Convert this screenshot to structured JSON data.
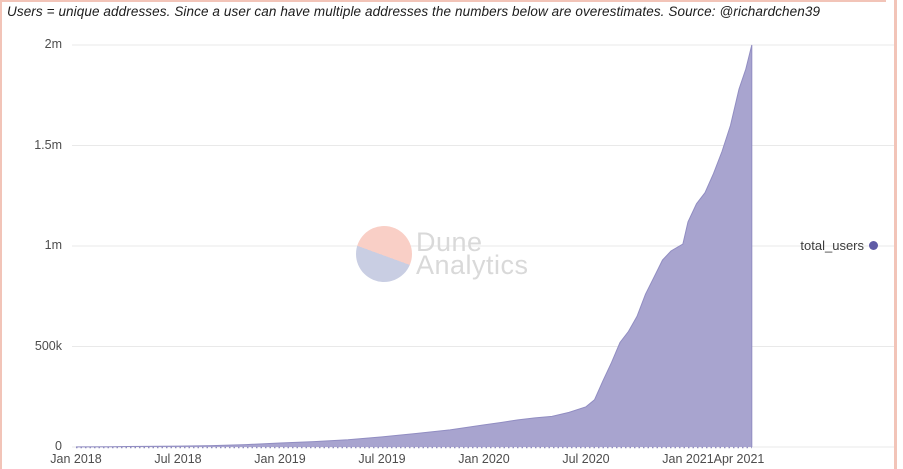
{
  "title": "Users = unique addresses. Since a user can have multiple addresses the numbers below are overestimates. Source: @richardchen39",
  "legend": {
    "label": "total_users",
    "dot_color": "#5f5ba6"
  },
  "watermark": {
    "line1": "Dune",
    "line2": "Analytics"
  },
  "colors": {
    "area_fill": "#a8a4cf",
    "area_edge": "#918dc2",
    "grid": "#e9e9e9",
    "baseline_dots": "#8f8bc0",
    "axis_text": "#4d4d4d",
    "border_pink": "#f2c4b8",
    "logo_top": "#f9cfc6",
    "logo_bottom": "#c9cee3",
    "watermark_text": "#d9d9d9"
  },
  "chart_data": {
    "type": "area",
    "title": "Users = unique addresses. Since a user can have multiple addresses the numbers below are overestimates. Source: @richardchen39",
    "series_name": "total_users",
    "xlabel": "",
    "ylabel": "",
    "x_unit": "months since Jan 2018",
    "x_range": [
      "Jan 2018",
      "late Apr 2021"
    ],
    "ylim": [
      0,
      2000000
    ],
    "grid": "horizontal-only",
    "legend_position": "right",
    "yticks": [
      {
        "label": "0",
        "value": 0
      },
      {
        "label": "500k",
        "value": 500000
      },
      {
        "label": "1m",
        "value": 1000000
      },
      {
        "label": "1.5m",
        "value": 1500000
      },
      {
        "label": "2m",
        "value": 2000000
      }
    ],
    "xticks": [
      {
        "label": "Jan 2018",
        "month": 0
      },
      {
        "label": "Jul 2018",
        "month": 6
      },
      {
        "label": "Jan 2019",
        "month": 12
      },
      {
        "label": "Jul 2019",
        "month": 18
      },
      {
        "label": "Jan 2020",
        "month": 24
      },
      {
        "label": "Jul 2020",
        "month": 30
      },
      {
        "label": "Jan 2021",
        "month": 36
      },
      {
        "label": "Apr 2021",
        "month": 39
      }
    ],
    "points": [
      [
        0,
        500
      ],
      [
        2,
        1500
      ],
      [
        4,
        3000
      ],
      [
        6,
        4500
      ],
      [
        8,
        7000
      ],
      [
        10,
        12000
      ],
      [
        12,
        20000
      ],
      [
        14,
        27000
      ],
      [
        16,
        36000
      ],
      [
        18,
        50000
      ],
      [
        20,
        67000
      ],
      [
        22,
        85000
      ],
      [
        24,
        110000
      ],
      [
        25,
        122000
      ],
      [
        26,
        135000
      ],
      [
        27,
        145000
      ],
      [
        28,
        152000
      ],
      [
        29,
        172000
      ],
      [
        30,
        200000
      ],
      [
        30.5,
        235000
      ],
      [
        31,
        330000
      ],
      [
        31.5,
        420000
      ],
      [
        32,
        520000
      ],
      [
        32.5,
        575000
      ],
      [
        33,
        650000
      ],
      [
        33.5,
        760000
      ],
      [
        34,
        845000
      ],
      [
        34.5,
        930000
      ],
      [
        35,
        975000
      ],
      [
        35.7,
        1010000
      ],
      [
        36,
        1120000
      ],
      [
        36.5,
        1210000
      ],
      [
        37,
        1265000
      ],
      [
        37.5,
        1360000
      ],
      [
        38,
        1470000
      ],
      [
        38.5,
        1600000
      ],
      [
        39,
        1780000
      ],
      [
        39.4,
        1880000
      ],
      [
        39.75,
        2000000
      ]
    ]
  }
}
